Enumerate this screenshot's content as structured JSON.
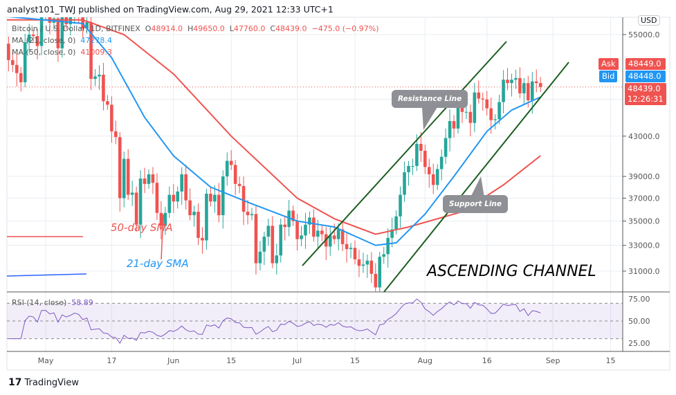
{
  "header": {
    "published": "analyst101_TWJ published on TradingView.com, Aug 29, 2021 12:33 UTC+1"
  },
  "legend": {
    "symbol": "Bitcoin / U.S. Dollar, 1D, BITFINEX",
    "o_label": "O",
    "o": "48914.0",
    "h_label": "H",
    "h": "49650.0",
    "l_label": "L",
    "l": "47760.0",
    "c_label": "C",
    "c": "48439.0",
    "change": "−475.0 (−0.97%)",
    "ma21_label": "MA (21, close, 0)",
    "ma21": "47278.4",
    "ma50_label": "MA (50, close, 0)",
    "ma50": "41009.3",
    "rsi_label": "RSI (14, close)",
    "rsi": "58.89"
  },
  "price_tags": {
    "currency": "USD",
    "ask_label": "Ask",
    "ask": "48449.0",
    "bid_label": "Bid",
    "bid": "48448.0",
    "last": "48439.0",
    "countdown": "12:26:31"
  },
  "annotations": {
    "resistance": "Resistance Line",
    "support": "Support Line",
    "channel": "ASCENDING CHANNEL",
    "sma50": "50-day SMA",
    "sma21": "21-day SMA"
  },
  "footer": {
    "brand": "TradingView"
  },
  "colors": {
    "up": "#26a69a",
    "down": "#ef5350",
    "ma21": "#2196f3",
    "ma50": "#ef5350",
    "channel": "#1b5e20",
    "rsi": "#7e57c2"
  },
  "chart_data": {
    "type": "candlestick",
    "scale": "log",
    "grid": true,
    "start_date": "2021-04-21",
    "closes": [
      53800,
      51700,
      51100,
      50100,
      49000,
      54000,
      55000,
      54800,
      53500,
      57700,
      57800,
      56600,
      57200,
      53200,
      57500,
      56400,
      57400,
      58900,
      58300,
      55800,
      56700,
      49400,
      49700,
      49900,
      46800,
      46400,
      43500,
      42900,
      37000,
      40700,
      37300,
      37500,
      34700,
      38800,
      38300,
      39200,
      38400,
      35700,
      34600,
      35700,
      37300,
      36700,
      37600,
      39200,
      36800,
      35500,
      35800,
      33600,
      33400,
      37400,
      36700,
      37300,
      35500,
      39000,
      40500,
      40100,
      38300,
      38100,
      35800,
      35500,
      35600,
      31600,
      32500,
      33700,
      34600,
      31600,
      32200,
      34700,
      34500,
      35900,
      35000,
      33500,
      33800,
      34700,
      35300,
      33700,
      34200,
      33900,
      32900,
      33800,
      33500,
      34300,
      33100,
      32700,
      32800,
      31900,
      31400,
      31500,
      31800,
      30800,
      29800,
      32100,
      32300,
      33600,
      34300,
      35400,
      37300,
      39400,
      40000,
      40000,
      42200,
      41500,
      39900,
      39200,
      38200,
      39700,
      40900,
      42800,
      44600,
      43800,
      46300,
      45600,
      45600,
      44400,
      47800,
      47100,
      47000,
      46000,
      44700,
      44800,
      46700,
      49300,
      48900,
      49300,
      49500,
      47700,
      48900,
      46900,
      49100,
      48900,
      48439
    ],
    "ma21": [
      [
        "2021-04-21",
        57500
      ],
      [
        "2021-05-10",
        56500
      ],
      [
        "2021-05-17",
        52000
      ],
      [
        "2021-05-25",
        45000
      ],
      [
        "2021-06-01",
        41000
      ],
      [
        "2021-06-10",
        38000
      ],
      [
        "2021-06-20",
        36500
      ],
      [
        "2021-07-01",
        35000
      ],
      [
        "2021-07-10",
        34500
      ],
      [
        "2021-07-20",
        33000
      ],
      [
        "2021-07-25",
        33200
      ],
      [
        "2021-08-01",
        35600
      ],
      [
        "2021-08-08",
        39000
      ],
      [
        "2021-08-16",
        43500
      ],
      [
        "2021-08-22",
        45800
      ],
      [
        "2021-08-29",
        47278.4
      ]
    ],
    "ma50": [
      [
        "2021-04-21",
        57000
      ],
      [
        "2021-05-10",
        57000
      ],
      [
        "2021-05-20",
        55000
      ],
      [
        "2021-06-01",
        50000
      ],
      [
        "2021-06-15",
        43000
      ],
      [
        "2021-07-01",
        37000
      ],
      [
        "2021-07-10",
        35200
      ],
      [
        "2021-07-20",
        33900
      ],
      [
        "2021-07-28",
        34500
      ],
      [
        "2021-08-10",
        35800
      ],
      [
        "2021-08-20",
        38200
      ],
      [
        "2021-08-29",
        41009.3
      ]
    ],
    "y_ticks": [
      "55000.0",
      "43000.0",
      "39000.0",
      "37000.0",
      "35000.0",
      "33000.0",
      "31000.0"
    ],
    "rsi_ticks": [
      "75.00",
      "50.00",
      "25.00"
    ],
    "x_ticks": [
      "May",
      "17",
      "Jun",
      "15",
      "Jul",
      "15",
      "Aug",
      "16",
      "Sep",
      "15"
    ]
  }
}
